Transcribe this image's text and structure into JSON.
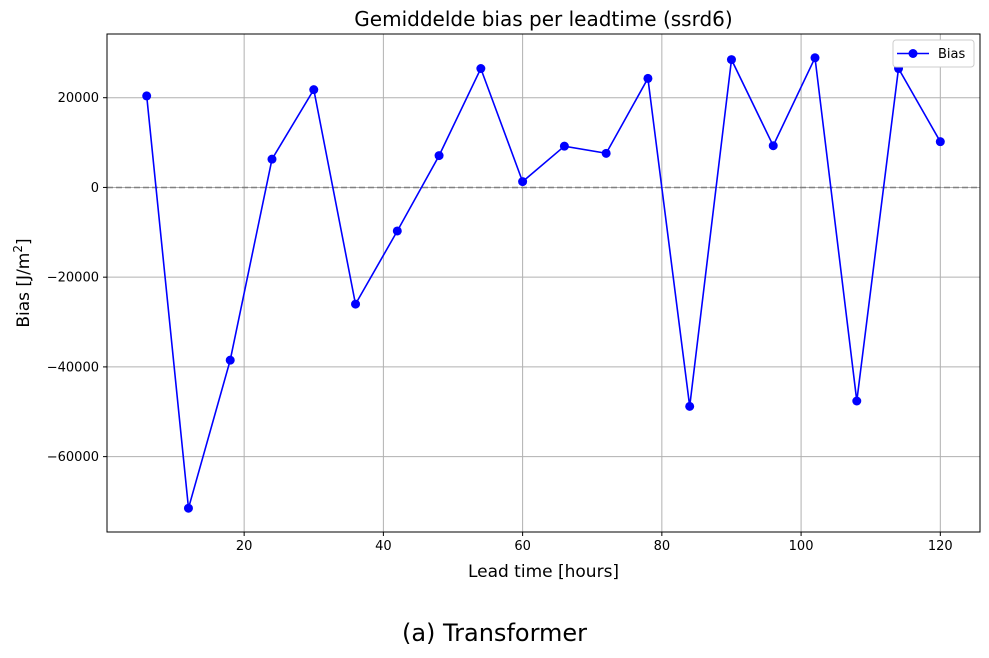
{
  "chart_data": {
    "type": "line",
    "title": "Gemiddelde bias per leadtime (ssrd6)",
    "xlabel": "Lead time [hours]",
    "ylabel_main": "Bias [J/m",
    "ylabel_sup": "2",
    "ylabel_close": "]",
    "xlim": [
      0.3,
      125.7
    ],
    "ylim": [
      -76800,
      34200
    ],
    "xticks": [
      20,
      40,
      60,
      80,
      100,
      120
    ],
    "yticks": [
      -60000,
      -40000,
      -20000,
      0,
      20000
    ],
    "ytick_labels": [
      "−60000",
      "−40000",
      "−20000",
      "0",
      "20000"
    ],
    "grid": true,
    "reference_line": 0,
    "legend_position": "top-right",
    "series": [
      {
        "name": "Bias",
        "color": "#0000ff",
        "x": [
          6,
          12,
          18,
          24,
          30,
          36,
          42,
          48,
          54,
          60,
          66,
          72,
          78,
          84,
          90,
          96,
          102,
          108,
          114,
          120
        ],
        "y": [
          20400,
          -71500,
          -38500,
          6300,
          21800,
          -26000,
          -9700,
          7100,
          26500,
          1300,
          9200,
          7600,
          24300,
          -48800,
          28500,
          9300,
          28900,
          -47600,
          26500,
          10200
        ]
      }
    ]
  },
  "caption": "(a) Transformer"
}
